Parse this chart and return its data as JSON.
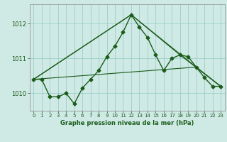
{
  "title": "Graphe pression niveau de la mer (hPa)",
  "background_color": "#cfe9e5",
  "grid_color": "#9dcfca",
  "line_color": "#1a5c1a",
  "xlim": [
    -0.5,
    23.5
  ],
  "ylim": [
    1009.5,
    1012.55
  ],
  "yticks": [
    1010,
    1011,
    1012
  ],
  "xticks": [
    0,
    1,
    2,
    3,
    4,
    5,
    6,
    7,
    8,
    9,
    10,
    11,
    12,
    13,
    14,
    15,
    16,
    17,
    18,
    19,
    20,
    21,
    22,
    23
  ],
  "series": [
    {
      "x": [
        0,
        1,
        2,
        3,
        4,
        5,
        6,
        7,
        8,
        9,
        10,
        11,
        12,
        13,
        14,
        15,
        16,
        17,
        18,
        19,
        20,
        21,
        22,
        23
      ],
      "y": [
        1010.4,
        1010.4,
        1009.9,
        1009.9,
        1010.0,
        1009.7,
        1010.15,
        1010.4,
        1010.65,
        1011.05,
        1011.35,
        1011.75,
        1012.25,
        1011.9,
        1011.6,
        1011.1,
        1010.65,
        1011.0,
        1011.1,
        1011.05,
        1010.75,
        1010.45,
        1010.2,
        1010.2
      ],
      "marker": "D",
      "markersize": 2.5,
      "linewidth": 1.0
    },
    {
      "x": [
        0,
        12,
        18,
        23
      ],
      "y": [
        1010.4,
        1012.25,
        1011.1,
        1010.2
      ],
      "marker": null,
      "linewidth": 0.9
    },
    {
      "x": [
        0,
        12,
        20,
        23
      ],
      "y": [
        1010.4,
        1012.25,
        1010.75,
        1010.2
      ],
      "marker": null,
      "linewidth": 0.8
    },
    {
      "x": [
        0,
        20,
        23
      ],
      "y": [
        1010.4,
        1010.75,
        1010.2
      ],
      "marker": null,
      "linewidth": 0.8
    }
  ]
}
